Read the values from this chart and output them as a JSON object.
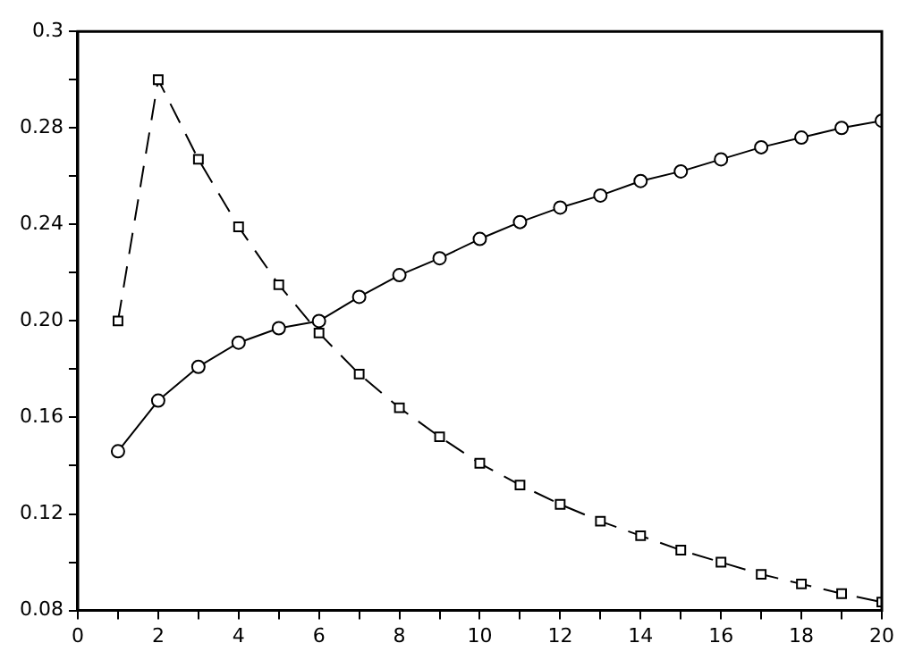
{
  "chart_data": {
    "type": "line",
    "x": [
      1,
      2,
      3,
      4,
      5,
      6,
      7,
      8,
      9,
      10,
      11,
      12,
      13,
      14,
      15,
      16,
      17,
      18,
      19,
      20
    ],
    "series": [
      {
        "color": "#000000",
        "marker": "circle",
        "line_style": "solid",
        "values": [
          0.146,
          0.167,
          0.181,
          0.191,
          0.197,
          0.2,
          0.21,
          0.219,
          0.226,
          0.234,
          0.241,
          0.247,
          0.252,
          0.258,
          0.262,
          0.267,
          0.272,
          0.276,
          0.28,
          0.283
        ]
      },
      {
        "color": "#000000",
        "marker": "square",
        "line_style": "dashed",
        "values": [
          0.2,
          0.3,
          0.267,
          0.239,
          0.215,
          0.195,
          0.178,
          0.164,
          0.152,
          0.141,
          0.132,
          0.124,
          0.117,
          0.111,
          0.105,
          0.1,
          0.095,
          0.091,
          0.087,
          0.0835
        ]
      }
    ],
    "xlim": [
      0,
      20
    ],
    "xticks": [
      0,
      {
        "value": 1,
        "label": null
      },
      2,
      {
        "value": 3,
        "label": null
      },
      4,
      {
        "value": 5,
        "label": null
      },
      6,
      {
        "value": 7,
        "label": null
      },
      8,
      {
        "value": 9,
        "label": null
      },
      10,
      {
        "value": 11,
        "label": null
      },
      12,
      {
        "value": 13,
        "label": null
      },
      14,
      {
        "value": 15,
        "label": null
      },
      16,
      {
        "value": 17,
        "label": null
      },
      18,
      {
        "value": 19,
        "label": null
      },
      20
    ],
    "ylim": [
      0.08,
      0.32
    ],
    "yticks": [
      {
        "value": 0.08,
        "label": "0.08"
      },
      {
        "value": 0.1,
        "label": null
      },
      {
        "value": 0.12,
        "label": "0.12"
      },
      {
        "value": 0.14,
        "label": null
      },
      {
        "value": 0.16,
        "label": "0.16"
      },
      {
        "value": 0.18,
        "label": null
      },
      {
        "value": 0.2,
        "label": "0.20"
      },
      {
        "value": 0.22,
        "label": null
      },
      {
        "value": 0.24,
        "label": "0.24"
      },
      {
        "value": 0.26,
        "label": null
      },
      {
        "value": 0.28,
        "label": "0.28"
      },
      {
        "value": 0.3,
        "label": null
      },
      {
        "value": 0.32,
        "label": "0.3"
      }
    ],
    "grid": false,
    "legend": false
  }
}
